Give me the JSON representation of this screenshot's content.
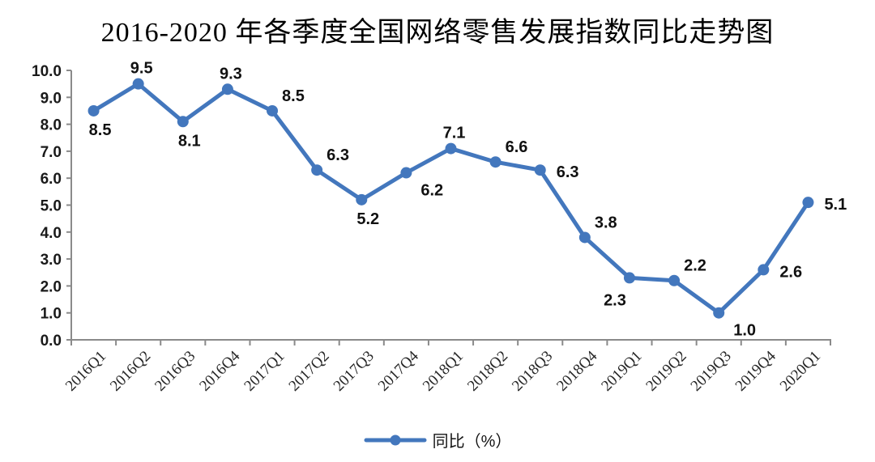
{
  "chart_data": {
    "type": "line",
    "title": "2016-2020 年各季度全国网络零售发展指数同比走势图",
    "categories": [
      "2016Q1",
      "2016Q2",
      "2016Q3",
      "2016Q4",
      "2017Q1",
      "2017Q2",
      "2017Q3",
      "2017Q4",
      "2018Q1",
      "2018Q2",
      "2018Q3",
      "2018Q4",
      "2019Q1",
      "2019Q2",
      "2019Q3",
      "2019Q4",
      "2020Q1"
    ],
    "series": [
      {
        "name": "同比（%）",
        "color": "#4377bd",
        "values": [
          8.5,
          9.5,
          8.1,
          9.3,
          8.5,
          6.3,
          5.2,
          6.2,
          7.1,
          6.6,
          6.3,
          3.8,
          2.3,
          2.2,
          1.0,
          2.6,
          5.1
        ],
        "data_labels": [
          "8.5",
          "9.5",
          "8.1",
          "9.3",
          "8.5",
          "6.3",
          "5.2",
          "6.2",
          "7.1",
          "6.6",
          "6.3",
          "3.8",
          "2.3",
          "2.2",
          "1.0",
          "2.6",
          "5.1"
        ],
        "data_label_positions": [
          "below",
          "above",
          "below",
          "above",
          "above-right",
          "above-right",
          "below",
          "below-right",
          "above",
          "above-right",
          "right",
          "above-right",
          "below-left",
          "above-right",
          "below-right",
          "right",
          "right"
        ]
      }
    ],
    "xlabel": "",
    "ylabel": "",
    "ylim": [
      0,
      10
    ],
    "ytick_step": 1.0,
    "ytick_labels": [
      "0.0",
      "1.0",
      "2.0",
      "3.0",
      "4.0",
      "5.0",
      "6.0",
      "7.0",
      "8.0",
      "9.0",
      "10.0"
    ],
    "grid": false,
    "legend_position": "bottom",
    "axis_color": "#8a8a8a",
    "marker": "circle"
  }
}
